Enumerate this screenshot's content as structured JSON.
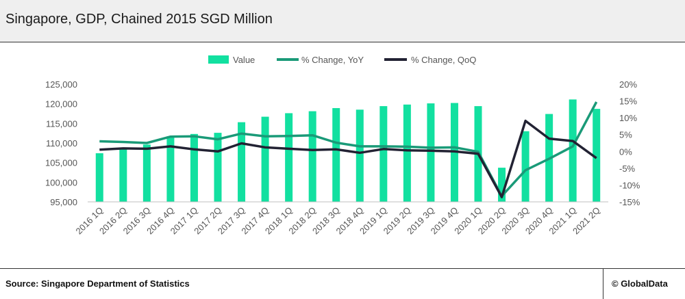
{
  "header": {
    "title": "Singapore, GDP, Chained 2015 SGD Million"
  },
  "footer": {
    "source": "Source: Singapore Department of Statistics",
    "brand": "© GlobalData"
  },
  "colors": {
    "bar": "#12e0a0",
    "yoy": "#1a9a78",
    "qoq": "#222233",
    "axis_text": "#555555"
  },
  "chart_data": {
    "type": "bar",
    "categories": [
      "2016 1Q",
      "2016 2Q",
      "2016 3Q",
      "2016 4Q",
      "2017 1Q",
      "2017 2Q",
      "2017 3Q",
      "2017 4Q",
      "2018 1Q",
      "2018 2Q",
      "2018 3Q",
      "2018 4Q",
      "2019 1Q",
      "2019 2Q",
      "2019 3Q",
      "2019 4Q",
      "2020 1Q",
      "2020 2Q",
      "2020 3Q",
      "2020 4Q",
      "2021 1Q",
      "2021 2Q"
    ],
    "series": [
      {
        "name": "Value",
        "type": "bar",
        "axis": "left",
        "values": [
          107400,
          108700,
          109600,
          111700,
          112300,
          112600,
          115300,
          116700,
          117600,
          118100,
          118900,
          118500,
          119400,
          119800,
          120100,
          120200,
          119400,
          103700,
          113000,
          117400,
          121100,
          118700
        ]
      },
      {
        "name": "% Change, YoY",
        "type": "line",
        "axis": "right",
        "values": [
          3.0,
          2.8,
          2.5,
          4.4,
          4.5,
          3.6,
          5.3,
          4.5,
          4.6,
          4.8,
          2.6,
          1.5,
          1.5,
          1.4,
          1.1,
          1.2,
          -0.1,
          -13.3,
          -5.6,
          -2.2,
          1.5,
          14.7
        ]
      },
      {
        "name": "% Change, QoQ",
        "type": "line",
        "axis": "right",
        "values": [
          0.5,
          0.9,
          0.8,
          1.5,
          0.6,
          0.0,
          2.4,
          1.2,
          0.8,
          0.4,
          0.6,
          -0.4,
          0.7,
          0.3,
          0.2,
          0.0,
          -0.7,
          -13.6,
          9.1,
          3.8,
          3.1,
          -2.0
        ]
      }
    ],
    "left_axis": {
      "ylim": [
        95000,
        125000
      ],
      "ticks": [
        "95,000",
        "100,000",
        "105,000",
        "110,000",
        "115,000",
        "120,000",
        "125,000"
      ]
    },
    "right_axis": {
      "ylim": [
        -15,
        20
      ],
      "ticks": [
        "-15%",
        "-10%",
        "-5%",
        "0%",
        "5%",
        "10%",
        "15%",
        "20%"
      ]
    },
    "legend": {
      "position": "top",
      "entries": [
        "Value",
        "% Change, YoY",
        "% Change, QoQ"
      ]
    },
    "grid": false
  }
}
